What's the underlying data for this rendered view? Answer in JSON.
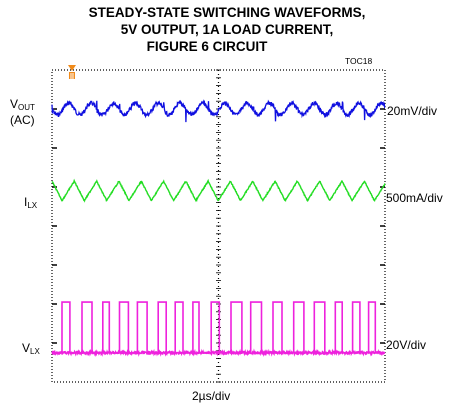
{
  "chart_data": {
    "type": "line",
    "title_lines": [
      "STEADY-STATE SWITCHING WAVEFORMS,",
      "5V OUTPUT, 1A LOAD CURRENT,",
      "FIGURE 6 CIRCUIT"
    ],
    "figure_id": "TOC18",
    "xlabel": "2µs/div",
    "grid": {
      "divisions_x": 10,
      "divisions_y": 8,
      "center_graticule": true,
      "outer_frame": "dotted"
    },
    "series": [
      {
        "name_main": "V",
        "name_sub": "OUT",
        "name_note": "(AC)",
        "scale": "20mV/div",
        "color": "#1010e0",
        "shape": "ripple",
        "level_div": 1.0,
        "period_div": 0.67,
        "amplitude_div": 0.15,
        "noise_div": 0.1
      },
      {
        "name_main": "I",
        "name_sub": "LX",
        "name_note": "",
        "scale": "500mA/div",
        "color": "#22dd22",
        "shape": "triangle",
        "level_div": 3.1,
        "period_div": 0.67,
        "amplitude_div": 0.5
      },
      {
        "name_main": "V",
        "name_sub": "LX",
        "name_note": "",
        "scale": "20V/div",
        "color": "#ee22dd",
        "shape": "pulse",
        "level_div": 7.25,
        "period_div": 0.67,
        "duty": 0.45,
        "amplitude_div": 1.3
      }
    ],
    "trigger_marker": {
      "color": "#f08a1a",
      "position_div": 0.6
    }
  }
}
